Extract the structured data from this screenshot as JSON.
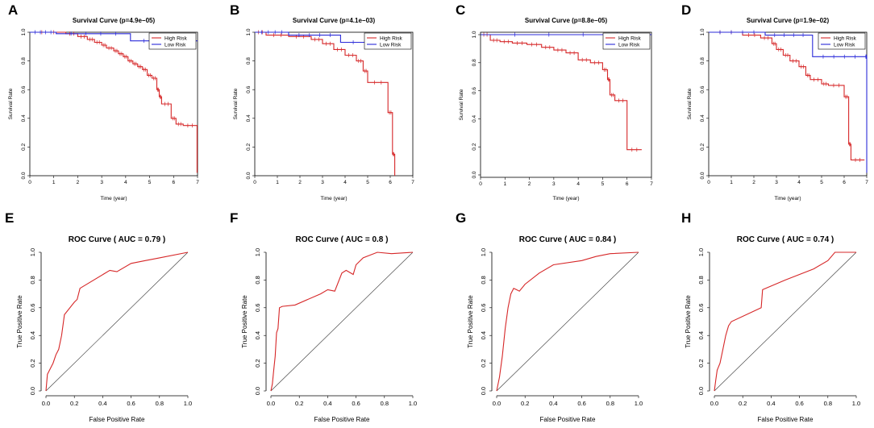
{
  "colors": {
    "high": "#d62728",
    "low": "#2b2bd9",
    "diag": "#333333"
  },
  "chart_data": [
    {
      "type": "line",
      "panel": "A",
      "title": "Survival Curve (p=4.9e−05)",
      "xlabel": "Time (year)",
      "ylabel": "Survival Rate",
      "xlim": [
        0,
        7
      ],
      "ylim": [
        0,
        1
      ],
      "xticks": [
        "0",
        "1",
        "2",
        "3",
        "4",
        "5",
        "6",
        "7"
      ],
      "yticks": [
        "0.0",
        "0.2",
        "0.4",
        "0.6",
        "0.8",
        "1.0"
      ],
      "legend": [
        "High Risk",
        "Low Risk"
      ],
      "series": [
        {
          "name": "High Risk",
          "step": true,
          "x": [
            0,
            1.5,
            2.0,
            2.4,
            2.7,
            3.0,
            3.2,
            3.5,
            3.7,
            3.9,
            4.1,
            4.3,
            4.5,
            4.7,
            4.9,
            5.1,
            5.3,
            5.4,
            5.5,
            5.9,
            6.1,
            6.4,
            6.98
          ],
          "y": [
            1.0,
            0.99,
            0.97,
            0.95,
            0.93,
            0.91,
            0.89,
            0.87,
            0.85,
            0.83,
            0.8,
            0.78,
            0.76,
            0.74,
            0.7,
            0.68,
            0.6,
            0.55,
            0.5,
            0.4,
            0.36,
            0.35,
            0.02
          ]
        },
        {
          "name": "Low Risk",
          "step": true,
          "x": [
            0,
            1.1,
            4.2,
            7.0
          ],
          "y": [
            1.0,
            0.99,
            0.94,
            0.94
          ]
        }
      ]
    },
    {
      "type": "line",
      "panel": "B",
      "title": "Survival Curve (p=4.1e−03)",
      "xlabel": "Time (year)",
      "ylabel": "Survival Rate",
      "xlim": [
        0,
        7
      ],
      "ylim": [
        0,
        1
      ],
      "xticks": [
        "0",
        "1",
        "2",
        "3",
        "4",
        "5",
        "6",
        "7"
      ],
      "yticks": [
        "0.0",
        "0.2",
        "0.4",
        "0.6",
        "0.8",
        "1.0"
      ],
      "legend": [
        "High Risk",
        "Low Risk"
      ],
      "series": [
        {
          "name": "High Risk",
          "step": true,
          "x": [
            0,
            0.5,
            1.5,
            2.5,
            3.0,
            3.5,
            4.0,
            4.5,
            4.8,
            5.0,
            5.9,
            6.1,
            6.2
          ],
          "y": [
            1.0,
            0.98,
            0.97,
            0.95,
            0.92,
            0.88,
            0.84,
            0.8,
            0.73,
            0.65,
            0.44,
            0.15,
            0.0
          ]
        },
        {
          "name": "Low Risk",
          "step": true,
          "x": [
            0,
            1.5,
            3.8,
            6.6
          ],
          "y": [
            1.0,
            0.98,
            0.93,
            0.92
          ]
        }
      ]
    },
    {
      "type": "line",
      "panel": "C",
      "title": "Survival Curve (p=8.8e−05)",
      "xlabel": "Time (year)",
      "ylabel": "Survival Rate",
      "xlim": [
        0,
        7
      ],
      "ylim": [
        0,
        1
      ],
      "xticks": [
        "0",
        "1",
        "2",
        "3",
        "4",
        "5",
        "6",
        "7"
      ],
      "yticks": [
        "0.0",
        "0.2",
        "0.4",
        "0.6",
        "0.8",
        "1.0"
      ],
      "legend": [
        "High Risk",
        "Low Risk"
      ],
      "series": [
        {
          "name": "High Risk",
          "step": true,
          "x": [
            0,
            0.4,
            0.8,
            1.3,
            1.9,
            2.5,
            3.0,
            3.5,
            4.0,
            4.5,
            5.0,
            5.2,
            5.3,
            5.5,
            6.0,
            6.6
          ],
          "y": [
            1.0,
            0.96,
            0.95,
            0.94,
            0.93,
            0.91,
            0.89,
            0.87,
            0.82,
            0.8,
            0.75,
            0.68,
            0.57,
            0.53,
            0.18,
            0.18
          ]
        },
        {
          "name": "Low Risk",
          "step": true,
          "x": [
            0,
            7.0
          ],
          "y": [
            1.0,
            1.0
          ]
        }
      ]
    },
    {
      "type": "line",
      "panel": "D",
      "title": "Survival Curve (p=1.9e−02)",
      "xlabel": "Time (year)",
      "ylabel": "Survival Rate",
      "xlim": [
        0,
        7
      ],
      "ylim": [
        0,
        1
      ],
      "xticks": [
        "0",
        "1",
        "2",
        "3",
        "4",
        "5",
        "6",
        "7"
      ],
      "yticks": [
        "0.0",
        "0.2",
        "0.4",
        "0.6",
        "0.8",
        "1.0"
      ],
      "legend": [
        "High Risk",
        "Low Risk"
      ],
      "series": [
        {
          "name": "High Risk",
          "step": true,
          "x": [
            0,
            1.5,
            2.3,
            2.8,
            3.0,
            3.3,
            3.6,
            4.0,
            4.3,
            4.5,
            5.0,
            5.3,
            6.0,
            6.2,
            6.3,
            6.9
          ],
          "y": [
            1.0,
            0.98,
            0.96,
            0.92,
            0.88,
            0.84,
            0.8,
            0.76,
            0.7,
            0.67,
            0.64,
            0.63,
            0.55,
            0.22,
            0.11,
            0.11
          ]
        },
        {
          "name": "Low Risk",
          "step": true,
          "x": [
            0,
            2.5,
            4.6,
            6.95,
            7.0
          ],
          "y": [
            1.0,
            0.98,
            0.83,
            0.83,
            0.02
          ]
        }
      ]
    },
    {
      "type": "line",
      "panel": "E",
      "title": "ROC Curve ( AUC =  0.79 )",
      "xlabel": "False Positive Rate",
      "ylabel": "True Positive Rate",
      "xlim": [
        0,
        1
      ],
      "ylim": [
        0,
        1
      ],
      "xticks": [
        "0.0",
        "0.2",
        "0.4",
        "0.6",
        "0.8",
        "1.0"
      ],
      "yticks": [
        "0.0",
        "0.2",
        "0.4",
        "0.6",
        "0.8",
        "1.0"
      ],
      "diagonal": true,
      "series": [
        {
          "name": "ROC",
          "x": [
            0,
            0.01,
            0.03,
            0.05,
            0.07,
            0.09,
            0.11,
            0.13,
            0.2,
            0.22,
            0.24,
            0.45,
            0.5,
            0.6,
            0.7,
            0.8,
            1.0
          ],
          "y": [
            0,
            0.12,
            0.16,
            0.2,
            0.26,
            0.3,
            0.4,
            0.55,
            0.64,
            0.66,
            0.74,
            0.87,
            0.86,
            0.92,
            0.94,
            0.96,
            1.0
          ]
        }
      ]
    },
    {
      "type": "line",
      "panel": "F",
      "title": "ROC Curve ( AUC =  0.8 )",
      "xlabel": "False Positive Rate",
      "ylabel": "True Positive Rate",
      "xlim": [
        0,
        1
      ],
      "ylim": [
        0,
        1
      ],
      "xticks": [
        "0.0",
        "0.2",
        "0.4",
        "0.6",
        "0.8",
        "1.0"
      ],
      "yticks": [
        "0.0",
        "0.2",
        "0.4",
        "0.6",
        "0.8",
        "1.0"
      ],
      "diagonal": true,
      "series": [
        {
          "name": "ROC",
          "x": [
            0,
            0.01,
            0.02,
            0.03,
            0.04,
            0.05,
            0.06,
            0.08,
            0.17,
            0.35,
            0.4,
            0.45,
            0.5,
            0.53,
            0.58,
            0.6,
            0.65,
            0.75,
            0.85,
            1.0
          ],
          "y": [
            0,
            0.05,
            0.15,
            0.25,
            0.42,
            0.45,
            0.6,
            0.61,
            0.62,
            0.7,
            0.73,
            0.72,
            0.85,
            0.87,
            0.84,
            0.91,
            0.96,
            1.0,
            0.99,
            1.0
          ]
        }
      ]
    },
    {
      "type": "line",
      "panel": "G",
      "title": "ROC Curve ( AUC =  0.84 )",
      "xlabel": "False Positive Rate",
      "ylabel": "True Positive Rate",
      "xlim": [
        0,
        1
      ],
      "ylim": [
        0,
        1
      ],
      "xticks": [
        "0.0",
        "0.2",
        "0.4",
        "0.6",
        "0.8",
        "1.0"
      ],
      "yticks": [
        "0.0",
        "0.2",
        "0.4",
        "0.6",
        "0.8",
        "1.0"
      ],
      "diagonal": true,
      "series": [
        {
          "name": "ROC",
          "x": [
            0,
            0.02,
            0.04,
            0.06,
            0.08,
            0.1,
            0.12,
            0.14,
            0.16,
            0.2,
            0.3,
            0.4,
            0.6,
            0.7,
            0.8,
            1.0
          ],
          "y": [
            0,
            0.1,
            0.25,
            0.45,
            0.6,
            0.7,
            0.74,
            0.73,
            0.72,
            0.77,
            0.85,
            0.91,
            0.94,
            0.97,
            0.99,
            1.0
          ]
        }
      ]
    },
    {
      "type": "line",
      "panel": "H",
      "title": "ROC Curve ( AUC =  0.74 )",
      "xlabel": "False Positive Rate",
      "ylabel": "True Positive Rate",
      "xlim": [
        0,
        1
      ],
      "ylim": [
        0,
        1
      ],
      "xticks": [
        "0.0",
        "0.2",
        "0.4",
        "0.6",
        "0.8",
        "1.0"
      ],
      "yticks": [
        "0.0",
        "0.2",
        "0.4",
        "0.6",
        "0.8",
        "1.0"
      ],
      "diagonal": true,
      "series": [
        {
          "name": "ROC",
          "x": [
            0,
            0.01,
            0.02,
            0.04,
            0.06,
            0.08,
            0.1,
            0.12,
            0.33,
            0.34,
            0.5,
            0.7,
            0.8,
            0.85,
            1.0
          ],
          "y": [
            0,
            0.08,
            0.15,
            0.2,
            0.3,
            0.4,
            0.47,
            0.5,
            0.6,
            0.73,
            0.8,
            0.88,
            0.94,
            1.0,
            1.0
          ]
        }
      ]
    }
  ]
}
